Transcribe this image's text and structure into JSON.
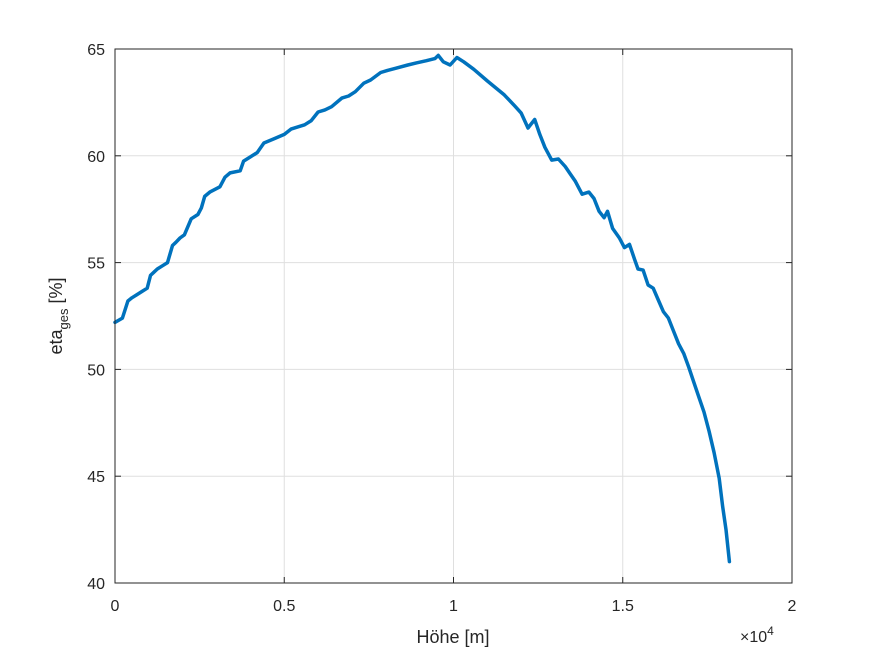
{
  "chart_data": {
    "type": "line",
    "xlabel": "Höhe [m]",
    "ylabel_main": "eta",
    "ylabel_sub": "ges",
    "ylabel_unit": "[%]",
    "x_multiplier": "×10",
    "x_multiplier_exp": "4",
    "xlim": [
      0,
      2
    ],
    "ylim": [
      40,
      65
    ],
    "x_ticks": [
      "0",
      "0.5",
      "1",
      "1.5",
      "2"
    ],
    "y_ticks": [
      "40",
      "45",
      "50",
      "55",
      "60",
      "65"
    ],
    "grid": true,
    "line_color": "#0072BD",
    "series": [
      {
        "x": [
          0.0,
          0.022,
          0.038,
          0.05,
          0.065,
          0.08,
          0.095,
          0.105,
          0.115,
          0.125,
          0.14,
          0.155,
          0.17,
          0.18,
          0.192,
          0.205,
          0.225,
          0.245,
          0.255,
          0.265,
          0.28,
          0.31,
          0.325,
          0.34,
          0.37,
          0.38,
          0.4,
          0.42,
          0.44,
          0.47,
          0.5,
          0.52,
          0.56,
          0.58,
          0.6,
          0.62,
          0.64,
          0.67,
          0.69,
          0.71,
          0.735,
          0.755,
          0.785,
          0.805,
          0.83,
          0.865,
          0.89,
          0.92,
          0.945,
          0.955,
          0.97,
          0.99,
          1.01,
          1.03,
          1.06,
          1.1,
          1.15,
          1.18,
          1.2,
          1.22,
          1.24,
          1.255,
          1.27,
          1.29,
          1.31,
          1.33,
          1.345,
          1.36,
          1.38,
          1.4,
          1.415,
          1.43,
          1.445,
          1.455,
          1.47,
          1.49,
          1.505,
          1.52,
          1.535,
          1.545,
          1.56,
          1.575,
          1.59,
          1.605,
          1.62,
          1.635,
          1.65,
          1.665,
          1.68,
          1.695,
          1.71,
          1.725,
          1.74,
          1.755,
          1.77,
          1.785,
          1.795,
          1.805,
          1.815
        ],
        "y": [
          52.2,
          52.4,
          53.2,
          53.35,
          53.5,
          53.65,
          53.8,
          54.4,
          54.55,
          54.7,
          54.85,
          55.0,
          55.8,
          55.95,
          56.15,
          56.3,
          57.05,
          57.25,
          57.55,
          58.1,
          58.3,
          58.55,
          59.0,
          59.2,
          59.3,
          59.75,
          59.95,
          60.15,
          60.6,
          60.8,
          61.0,
          61.25,
          61.45,
          61.65,
          62.05,
          62.15,
          62.3,
          62.7,
          62.8,
          63.0,
          63.4,
          63.55,
          63.9,
          64.0,
          64.1,
          64.25,
          64.35,
          64.45,
          64.55,
          64.7,
          64.4,
          64.25,
          64.6,
          64.4,
          64.05,
          63.5,
          62.85,
          62.35,
          62.0,
          61.3,
          61.7,
          61.0,
          60.4,
          59.8,
          59.85,
          59.5,
          59.15,
          58.8,
          58.2,
          58.3,
          58.0,
          57.4,
          57.1,
          57.4,
          56.6,
          56.15,
          55.7,
          55.85,
          55.15,
          54.7,
          54.65,
          53.95,
          53.8,
          53.25,
          52.7,
          52.4,
          51.8,
          51.2,
          50.75,
          50.1,
          49.4,
          48.7,
          48.0,
          47.1,
          46.1,
          44.9,
          43.6,
          42.5,
          41.0
        ]
      }
    ]
  }
}
